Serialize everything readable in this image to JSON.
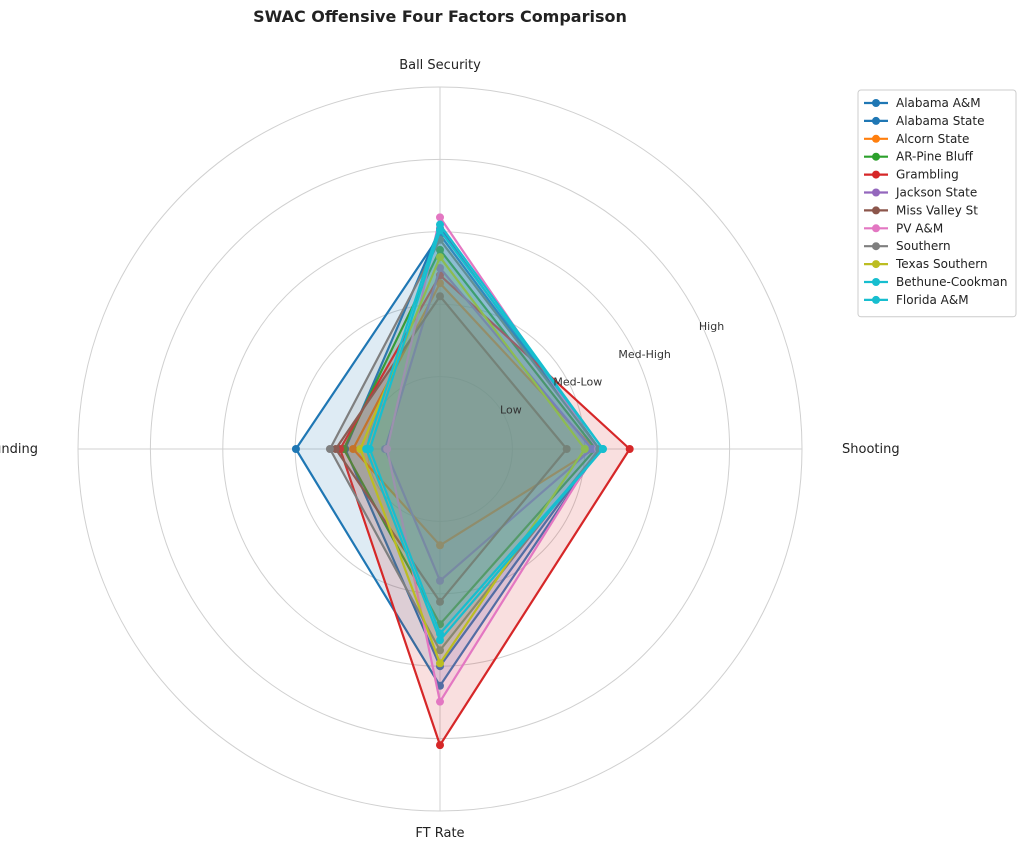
{
  "chart_data": {
    "type": "radar",
    "title": "SWAC Offensive Four Factors Comparison",
    "categories": [
      "Ball Security",
      "Shooting",
      "FT Rate",
      "Off Rebounding"
    ],
    "ylim": [
      0,
      5
    ],
    "yticks": [
      {
        "value": 1,
        "label": "Low"
      },
      {
        "value": 2,
        "label": "Med-Low"
      },
      {
        "value": 3,
        "label": "Med-High"
      },
      {
        "value": 4,
        "label": "High"
      }
    ],
    "grid": true,
    "legend": "upper right",
    "series": [
      {
        "name": "Alabama A&M",
        "color": "#1f77b4",
        "values": [
          2.96,
          2.2,
          3.27,
          1.99
        ]
      },
      {
        "name": "Alabama State",
        "color": "#1f77b4",
        "values": [
          3.05,
          2.2,
          3.0,
          1.31
        ]
      },
      {
        "name": "Alcorn State",
        "color": "#ff7f0e",
        "values": [
          2.29,
          2.13,
          1.33,
          1.2
        ]
      },
      {
        "name": "AR-Pine Bluff",
        "color": "#2ca02c",
        "values": [
          2.75,
          2.15,
          2.42,
          1.33
        ]
      },
      {
        "name": "Grambling",
        "color": "#d62728",
        "values": [
          2.4,
          2.62,
          4.09,
          1.38
        ]
      },
      {
        "name": "Jackson State",
        "color": "#9467bd",
        "values": [
          2.5,
          2.1,
          1.82,
          0.76
        ]
      },
      {
        "name": "Miss Valley St",
        "color": "#8c564b",
        "values": [
          2.11,
          1.75,
          2.11,
          1.44
        ]
      },
      {
        "name": "PV A&M",
        "color": "#e377c2",
        "values": [
          3.2,
          2.18,
          3.49,
          0.73
        ]
      },
      {
        "name": "Southern",
        "color": "#7f7f7f",
        "values": [
          2.89,
          2.2,
          2.78,
          1.52
        ]
      },
      {
        "name": "Texas Southern",
        "color": "#bcbd22",
        "values": [
          2.65,
          2.0,
          2.96,
          1.1
        ]
      },
      {
        "name": "Bethune-Cookman",
        "color": "#17becf",
        "values": [
          3.1,
          2.25,
          2.64,
          1.02
        ]
      },
      {
        "name": "Florida A&M",
        "color": "#17becf",
        "values": [
          3.02,
          2.25,
          2.55,
          0.97
        ]
      }
    ]
  }
}
